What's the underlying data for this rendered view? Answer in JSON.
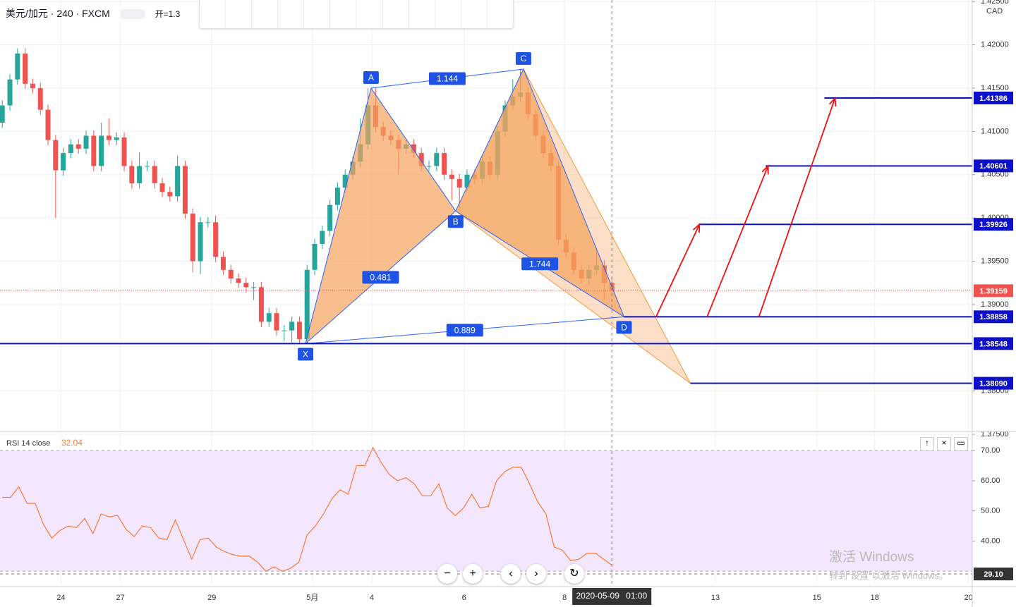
{
  "header": {
    "symbol": "美元/加元 · 240 · FXCM",
    "open_label": "开=1.3"
  },
  "watermark": {
    "title": "激活 Windows",
    "subtitle": "转到“设置”以激活 Windows。"
  },
  "chart_data": [
    {
      "type": "candlestick",
      "currency": "CAD",
      "up_color": "#26a69a",
      "down_color": "#ef5350",
      "open": [
        1.411,
        1.413,
        1.416,
        1.419,
        1.4155,
        1.415,
        1.4125,
        1.409,
        1.4055,
        1.4075,
        1.4085,
        1.408,
        1.4095,
        1.406,
        1.4095,
        1.409,
        1.4093,
        1.406,
        1.404,
        1.406,
        1.406,
        1.404,
        1.403,
        1.4025,
        1.406,
        1.4005,
        1.395,
        1.3995,
        1.3995,
        1.3955,
        1.394,
        1.393,
        1.3925,
        1.392,
        1.392,
        1.388,
        1.389,
        1.387,
        1.387,
        1.388,
        1.386,
        1.394,
        1.397,
        1.3985,
        1.4015,
        1.4035,
        1.405,
        1.4065,
        1.4085,
        1.413,
        1.4105,
        1.4095,
        1.409,
        1.408,
        1.4085,
        1.4075,
        1.406,
        1.406,
        1.4075,
        1.405,
        1.4045,
        1.4035,
        1.405,
        1.4045,
        1.4065,
        1.405,
        1.41,
        1.413,
        1.414,
        1.4145,
        1.412,
        1.4095,
        1.4075,
        1.406,
        1.3975,
        1.396,
        1.394,
        1.393,
        1.394,
        1.3945,
        1.3925
      ],
      "high": [
        1.4136,
        1.4166,
        1.4196,
        1.4196,
        1.4161,
        1.4156,
        1.4131,
        1.4096,
        1.4081,
        1.4091,
        1.4091,
        1.4101,
        1.4101,
        1.411,
        1.4115,
        1.4099,
        1.4099,
        1.4066,
        1.4076,
        1.4066,
        1.4066,
        1.4046,
        1.4036,
        1.4072,
        1.4066,
        1.4011,
        1.4001,
        1.4001,
        1.4003,
        1.3961,
        1.3946,
        1.3936,
        1.3931,
        1.3926,
        1.3926,
        1.3896,
        1.3896,
        1.3876,
        1.3886,
        1.3886,
        1.3946,
        1.3976,
        1.3991,
        1.4021,
        1.4041,
        1.4056,
        1.4071,
        1.4115,
        1.415,
        1.415,
        1.4111,
        1.4101,
        1.4096,
        1.4091,
        1.4091,
        1.4081,
        1.4066,
        1.4081,
        1.4081,
        1.4056,
        1.4051,
        1.4056,
        1.4056,
        1.4071,
        1.4071,
        1.4106,
        1.4136,
        1.416,
        1.4172,
        1.4151,
        1.4126,
        1.4101,
        1.4081,
        1.4066,
        1.3981,
        1.3966,
        1.3946,
        1.3946,
        1.3965,
        1.3951,
        1.3931
      ],
      "low": [
        1.4104,
        1.4124,
        1.4154,
        1.4149,
        1.4144,
        1.4119,
        1.4084,
        1.4,
        1.4049,
        1.4069,
        1.4074,
        1.4074,
        1.4054,
        1.4054,
        1.4084,
        1.4084,
        1.4054,
        1.4034,
        1.4034,
        1.4054,
        1.4034,
        1.4024,
        1.4019,
        1.4019,
        1.3999,
        1.3937,
        1.3935,
        1.3989,
        1.3949,
        1.3934,
        1.3924,
        1.3919,
        1.3914,
        1.3905,
        1.3874,
        1.3874,
        1.3864,
        1.3858,
        1.3856,
        1.38548,
        1.3854,
        1.3934,
        1.3964,
        1.3979,
        1.4009,
        1.4029,
        1.4044,
        1.4059,
        1.4079,
        1.4099,
        1.4089,
        1.4084,
        1.405,
        1.4074,
        1.4069,
        1.4054,
        1.4054,
        1.4054,
        1.4044,
        1.402,
        1.4008,
        1.4029,
        1.4039,
        1.4039,
        1.4044,
        1.4044,
        1.4094,
        1.4124,
        1.4134,
        1.4114,
        1.4089,
        1.4069,
        1.4054,
        1.3969,
        1.3954,
        1.3934,
        1.3924,
        1.3924,
        1.3934,
        1.3905,
        1.391
      ],
      "close": [
        1.413,
        1.416,
        1.419,
        1.4155,
        1.415,
        1.4125,
        1.409,
        1.4055,
        1.4075,
        1.4085,
        1.408,
        1.4095,
        1.406,
        1.4095,
        1.409,
        1.4093,
        1.406,
        1.404,
        1.406,
        1.406,
        1.404,
        1.403,
        1.4025,
        1.406,
        1.4005,
        1.395,
        1.3995,
        1.3995,
        1.3955,
        1.394,
        1.393,
        1.3925,
        1.392,
        1.392,
        1.388,
        1.389,
        1.387,
        1.387,
        1.388,
        1.386,
        1.394,
        1.397,
        1.3985,
        1.4015,
        1.4035,
        1.405,
        1.4065,
        1.4085,
        1.413,
        1.4105,
        1.4095,
        1.409,
        1.408,
        1.4085,
        1.4075,
        1.406,
        1.406,
        1.4075,
        1.405,
        1.4045,
        1.4035,
        1.405,
        1.4045,
        1.4065,
        1.405,
        1.41,
        1.413,
        1.414,
        1.4145,
        1.412,
        1.4095,
        1.4075,
        1.406,
        1.3975,
        1.396,
        1.394,
        1.393,
        1.394,
        1.3945,
        1.3925,
        1.3916
      ],
      "xlim": [
        -0.3,
        127.3
      ],
      "ylim": [
        1.37541,
        1.42518
      ],
      "xticks": [
        {
          "value": 7.7,
          "label": "24"
        },
        {
          "value": 15.5,
          "label": "27"
        },
        {
          "value": 27.5,
          "label": "29"
        },
        {
          "value": 40.7,
          "label": "5月"
        },
        {
          "value": 48.5,
          "label": "4"
        },
        {
          "value": 60.6,
          "label": "6"
        },
        {
          "value": 73.8,
          "label": "8"
        },
        {
          "value": 93.6,
          "label": "13"
        },
        {
          "value": 106.9,
          "label": "15"
        },
        {
          "value": 114.5,
          "label": "18"
        },
        {
          "value": 126.8,
          "label": "20"
        }
      ],
      "yticks": [
        {
          "value": 1.425,
          "label": "1.42500"
        },
        {
          "value": 1.42,
          "label": "1.42000"
        },
        {
          "value": 1.415,
          "label": "1.41500"
        },
        {
          "value": 1.41,
          "label": "1.41000"
        },
        {
          "value": 1.405,
          "label": "1.40500"
        },
        {
          "value": 1.4,
          "label": "1.40000"
        },
        {
          "value": 1.395,
          "label": "1.39500"
        },
        {
          "value": 1.39,
          "label": "1.39000"
        },
        {
          "value": 1.38,
          "label": "1.38000"
        },
        {
          "value": 1.375,
          "label": "1.37500"
        }
      ],
      "grid": true,
      "last_price": 1.39159,
      "pattern": {
        "fill": "#f5a35c",
        "edge": "#2962ff",
        "points": [
          {
            "name": "X",
            "x": 39.8,
            "y": 1.38548
          },
          {
            "name": "A",
            "x": 48.4,
            "y": 1.415
          },
          {
            "name": "B",
            "x": 59.5,
            "y": 1.4008
          },
          {
            "name": "C",
            "x": 68.4,
            "y": 1.4172
          },
          {
            "name": "D",
            "x": 81.6,
            "y": 1.38858
          }
        ],
        "ratios": [
          0.481,
          1.144,
          1.744,
          0.889
        ],
        "projection": {
          "x": 90.3,
          "y": 1.3809
        }
      },
      "levels": [
        {
          "price": 1.41386,
          "x": 107.9
        },
        {
          "price": 1.40601,
          "x": 100.2
        },
        {
          "price": 1.39926,
          "x": 91.4
        },
        {
          "price": 1.38858,
          "x": 81.6
        },
        {
          "price": 1.38548,
          "x": -0.3
        },
        {
          "price": 1.3809,
          "label": "1.38090",
          "x": 90.3
        }
      ],
      "level_color": "#0c10c8",
      "arrows": [
        {
          "x": [
            85.8,
            91.5
          ],
          "y": [
            1.38858,
            1.39926
          ]
        },
        {
          "x": [
            92.5,
            100.5
          ],
          "y": [
            1.38858,
            1.40601
          ]
        },
        {
          "x": [
            99.3,
            109.3
          ],
          "y": [
            1.38858,
            1.41386
          ]
        }
      ],
      "arrow_color": "#f01010",
      "crosshair_time": "2020-05-09",
      "crosshair_clock": "01:00"
    },
    {
      "type": "line",
      "title": "RSI 14 close",
      "last_value": 32.04,
      "color": "#f57c3a",
      "values": [
        54.5,
        54.5,
        58,
        52.5,
        52.5,
        45.5,
        41,
        43.5,
        45,
        44.5,
        47.5,
        42.5,
        49,
        48,
        48.5,
        44,
        41.5,
        45,
        44.5,
        41,
        40.5,
        47,
        40.5,
        34,
        40.5,
        41,
        38,
        36.5,
        35.5,
        35,
        35,
        33,
        30,
        31.5,
        30,
        31,
        33,
        42,
        45,
        49,
        54,
        57,
        55.5,
        65,
        65,
        71,
        66,
        62,
        60,
        61,
        59,
        55,
        55,
        59,
        51,
        48.5,
        51,
        55.5,
        51,
        51.5,
        60,
        63,
        64.5,
        64.5,
        59,
        53,
        49,
        38,
        37,
        33.5,
        34,
        36,
        36,
        34,
        32.04
      ],
      "ylim": [
        25.4,
        76.1
      ],
      "band": [
        30,
        70
      ],
      "yticks": [
        {
          "value": 70,
          "label": "70.00"
        },
        {
          "value": 60,
          "label": "60.00"
        },
        {
          "value": 50,
          "label": "50.00"
        },
        {
          "value": 40,
          "label": "40.00"
        }
      ],
      "crosshair": {
        "value": 29.1,
        "label": "29.10"
      }
    }
  ]
}
